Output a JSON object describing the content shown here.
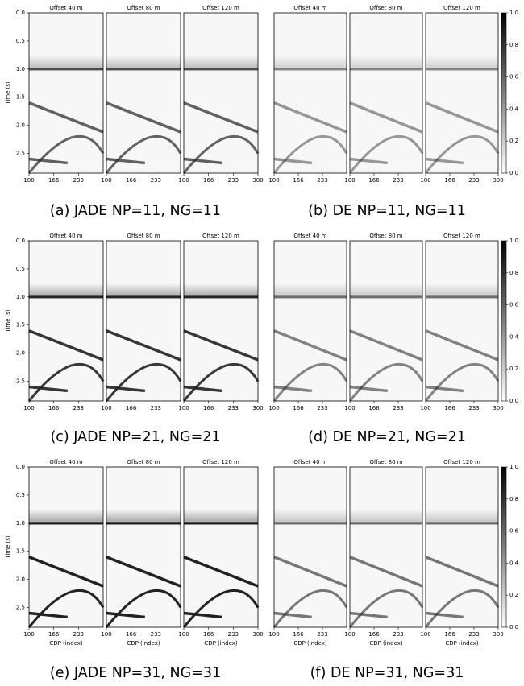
{
  "panels": [
    {
      "caption": "(a) JADE NP=11, NG=11",
      "subplots": [
        "Offset 40 m",
        "Offset 80 m",
        "Offset 120 m"
      ]
    },
    {
      "caption": "(b) DE NP=11, NG=11",
      "subplots": [
        "Offset 40 m",
        "Offset 80 m",
        "Offset 120 m"
      ]
    },
    {
      "caption": "(c) JADE NP=21, NG=21",
      "subplots": [
        "Offset 40 m",
        "Offset 80 m",
        "Offset 120 m"
      ]
    },
    {
      "caption": "(d) DE NP=21, NG=21",
      "subplots": [
        "Offset 40 m",
        "Offset 80 m",
        "Offset 120 m"
      ]
    },
    {
      "caption": "(e) JADE NP=31, NG=31",
      "subplots": [
        "Offset 40 m",
        "Offset 80 m",
        "Offset 120 m"
      ]
    },
    {
      "caption": "(f) DE NP=31, NG=31",
      "subplots": [
        "Offset 40 m",
        "Offset 80 m",
        "Offset 120 m"
      ]
    }
  ],
  "y_label": "Time (s)",
  "y_ticks": [
    "0.0",
    "0.5",
    "1.0",
    "1.5",
    "2.0",
    "2.5"
  ],
  "x_ticks": [
    "100",
    "166",
    "233",
    "300"
  ],
  "x_label": "CDP (index)",
  "colorbar_ticks": [
    "0.0",
    "0.2",
    "0.4",
    "0.6",
    "0.8",
    "1.0"
  ]
}
